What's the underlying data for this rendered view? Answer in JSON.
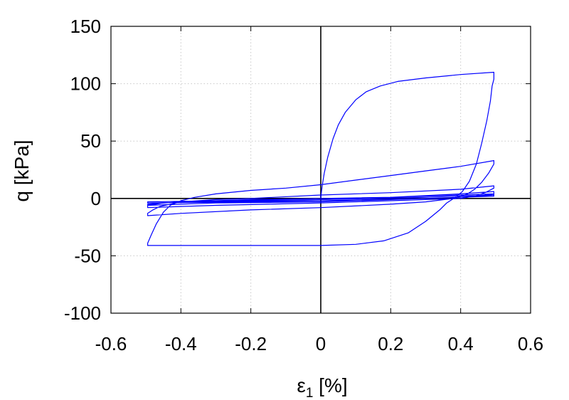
{
  "chart_data": {
    "type": "line",
    "xlabel": "ε1 [%]",
    "xlabel_main": "ε",
    "xlabel_sub": "1",
    "xlabel_rest": " [%]",
    "ylabel": "q [kPa]",
    "xlim": [
      -0.6,
      0.6
    ],
    "ylim": [
      -100,
      150
    ],
    "xticks": [
      -0.6,
      -0.4,
      -0.2,
      0,
      0.2,
      0.4,
      0.6
    ],
    "xtick_labels": [
      "-0.6",
      "-0.4",
      "-0.2",
      "0",
      "0.2",
      "0.4",
      "0.6"
    ],
    "yticks": [
      -100,
      -50,
      0,
      50,
      100,
      150
    ],
    "ytick_labels": [
      "-100",
      "-50",
      "0",
      "50",
      "100",
      "150"
    ],
    "grid": true,
    "zero_axes": true,
    "series_color": "#0000ff",
    "series": [
      {
        "points": [
          [
            0.0,
            0.0
          ],
          [
            0.002,
            6
          ],
          [
            0.005,
            13
          ],
          [
            0.01,
            22
          ],
          [
            0.02,
            36
          ],
          [
            0.035,
            52
          ],
          [
            0.05,
            64
          ],
          [
            0.07,
            75
          ],
          [
            0.1,
            86
          ],
          [
            0.13,
            93
          ],
          [
            0.17,
            98
          ],
          [
            0.22,
            102
          ],
          [
            0.3,
            105
          ],
          [
            0.4,
            108
          ],
          [
            0.495,
            110
          ],
          [
            0.495,
            104
          ],
          [
            0.49,
            98
          ],
          [
            0.485,
            85
          ],
          [
            0.475,
            68
          ],
          [
            0.46,
            48
          ],
          [
            0.445,
            30
          ],
          [
            0.425,
            15
          ],
          [
            0.405,
            6
          ],
          [
            0.385,
            1
          ],
          [
            0.36,
            -4
          ],
          [
            0.34,
            -10
          ],
          [
            0.3,
            -20
          ],
          [
            0.25,
            -30
          ],
          [
            0.18,
            -37
          ],
          [
            0.1,
            -40
          ],
          [
            0.0,
            -41
          ],
          [
            -0.2,
            -41
          ],
          [
            -0.4,
            -41
          ],
          [
            -0.495,
            -41
          ],
          [
            -0.495,
            -39
          ],
          [
            -0.485,
            -32
          ],
          [
            -0.47,
            -22
          ],
          [
            -0.45,
            -12
          ],
          [
            -0.43,
            -6
          ],
          [
            -0.4,
            -2
          ],
          [
            -0.36,
            1
          ],
          [
            -0.3,
            4
          ],
          [
            -0.2,
            7
          ],
          [
            -0.1,
            9
          ],
          [
            0.0,
            12
          ],
          [
            0.1,
            16
          ],
          [
            0.2,
            20
          ],
          [
            0.3,
            24
          ],
          [
            0.4,
            28
          ],
          [
            0.495,
            33
          ],
          [
            0.495,
            30
          ],
          [
            0.48,
            22
          ],
          [
            0.46,
            14
          ],
          [
            0.44,
            8
          ],
          [
            0.42,
            4
          ],
          [
            0.38,
            0
          ],
          [
            0.3,
            -3
          ],
          [
            0.2,
            -5
          ],
          [
            0.0,
            -8
          ],
          [
            -0.2,
            -10
          ],
          [
            -0.4,
            -13
          ],
          [
            -0.495,
            -15
          ],
          [
            -0.495,
            -13
          ],
          [
            -0.48,
            -10
          ],
          [
            -0.46,
            -7
          ],
          [
            -0.43,
            -5
          ],
          [
            -0.4,
            -3
          ],
          [
            -0.3,
            -1
          ],
          [
            -0.2,
            0
          ],
          [
            0.0,
            3
          ],
          [
            0.2,
            5
          ],
          [
            0.4,
            8
          ],
          [
            0.495,
            11
          ],
          [
            0.495,
            9
          ],
          [
            0.47,
            5
          ],
          [
            0.44,
            2
          ],
          [
            0.4,
            0
          ],
          [
            0.2,
            -2
          ],
          [
            0.0,
            -4
          ],
          [
            -0.3,
            -6
          ],
          [
            -0.495,
            -8
          ],
          [
            -0.495,
            -6
          ],
          [
            -0.45,
            -4
          ],
          [
            -0.4,
            -3
          ],
          [
            -0.2,
            -1
          ],
          [
            0.0,
            0
          ],
          [
            0.2,
            1
          ],
          [
            0.4,
            4
          ],
          [
            0.495,
            6
          ],
          [
            0.495,
            4
          ],
          [
            0.45,
            2
          ],
          [
            0.4,
            1
          ],
          [
            0.2,
            -1
          ],
          [
            0.0,
            -3
          ],
          [
            -0.3,
            -4
          ],
          [
            -0.495,
            -6
          ],
          [
            -0.495,
            -5
          ],
          [
            -0.4,
            -3
          ],
          [
            -0.2,
            -2
          ],
          [
            0.0,
            -1
          ],
          [
            0.2,
            1
          ],
          [
            0.4,
            3
          ],
          [
            0.495,
            4
          ],
          [
            0.495,
            3
          ],
          [
            0.4,
            1
          ],
          [
            0.2,
            -1
          ],
          [
            0.0,
            -2
          ],
          [
            -0.2,
            -3
          ],
          [
            -0.495,
            -4
          ],
          [
            -0.495,
            -3
          ],
          [
            -0.3,
            -2
          ],
          [
            0.0,
            -1
          ],
          [
            0.3,
            1
          ],
          [
            0.495,
            3
          ],
          [
            0.495,
            2
          ],
          [
            0.3,
            0
          ],
          [
            0.0,
            -2
          ],
          [
            -0.3,
            -3
          ],
          [
            -0.495,
            -4
          ]
        ]
      }
    ]
  }
}
